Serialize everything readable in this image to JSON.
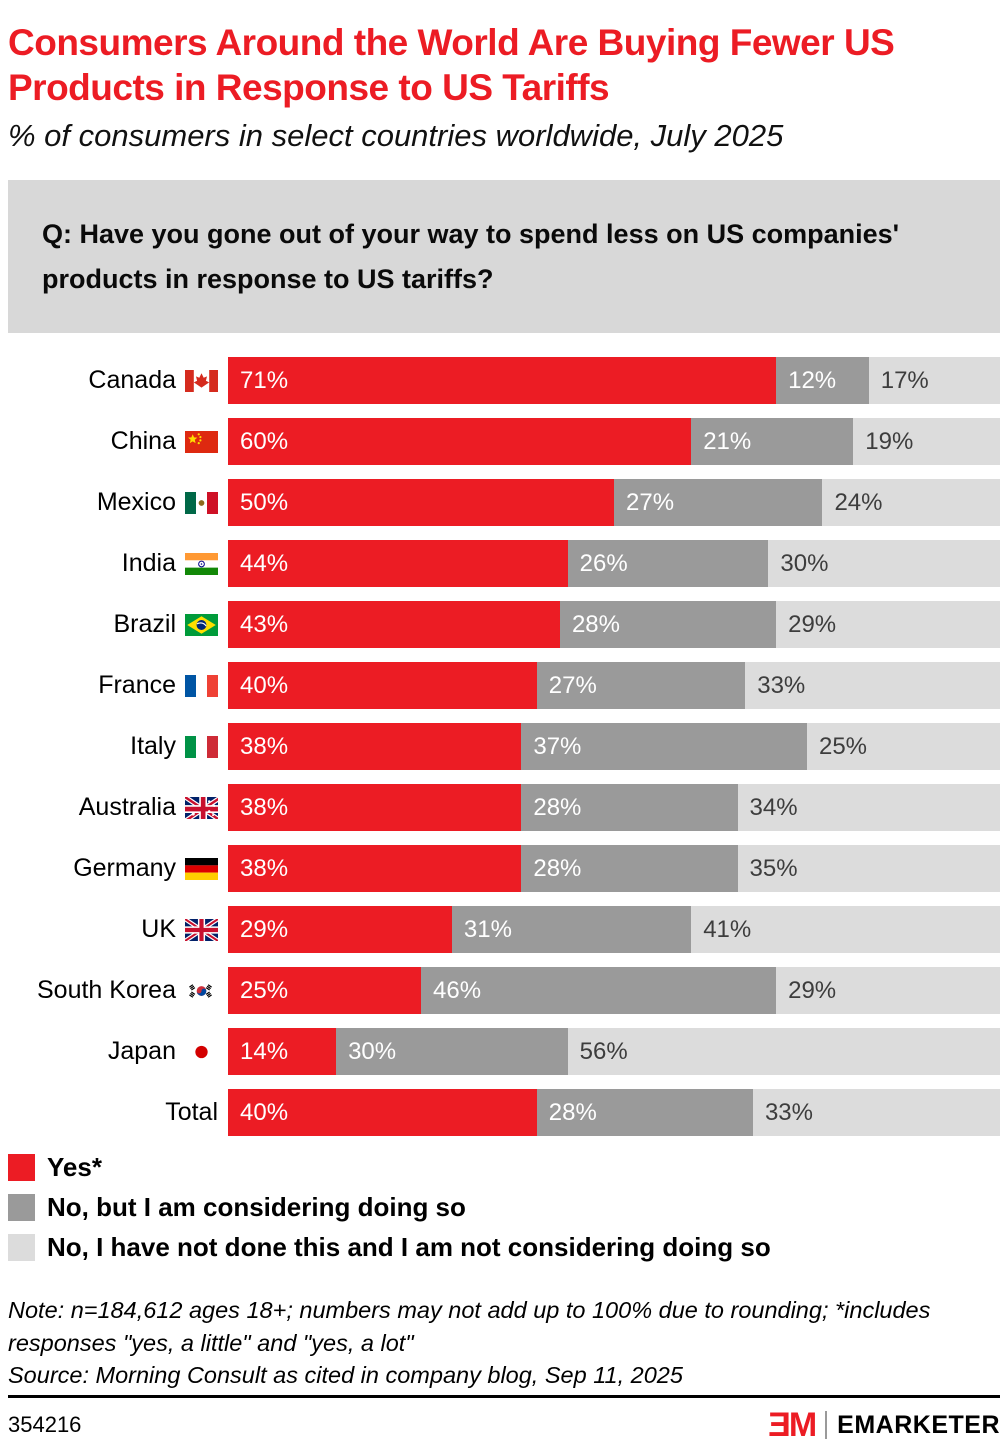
{
  "header": {
    "title": "Consumers Around the World Are Buying Fewer US Products in Response to US Tariffs",
    "subtitle": "% of consumers in select countries worldwide, July 2025"
  },
  "question": "Q: Have you gone out of your way to spend less on US companies' products in response to US tariffs?",
  "chart_data": {
    "type": "bar",
    "stacked": true,
    "orientation": "horizontal",
    "unit": "%",
    "xlim": [
      0,
      100
    ],
    "grid": false,
    "legend_position": "bottom-left",
    "series_names": [
      "Yes*",
      "No, but I am considering doing so",
      "No, I have not done this and I am not considering doing so"
    ],
    "categories": [
      "Canada",
      "China",
      "Mexico",
      "India",
      "Brazil",
      "France",
      "Italy",
      "Australia",
      "Germany",
      "UK",
      "South Korea",
      "Japan",
      "Total"
    ],
    "rows": [
      {
        "label": "Canada",
        "flag": "canada",
        "values": [
          71,
          12,
          17
        ]
      },
      {
        "label": "China",
        "flag": "china",
        "values": [
          60,
          21,
          19
        ]
      },
      {
        "label": "Mexico",
        "flag": "mexico",
        "values": [
          50,
          27,
          24
        ]
      },
      {
        "label": "India",
        "flag": "india",
        "values": [
          44,
          26,
          30
        ]
      },
      {
        "label": "Brazil",
        "flag": "brazil",
        "values": [
          43,
          28,
          29
        ]
      },
      {
        "label": "France",
        "flag": "france",
        "values": [
          40,
          27,
          33
        ]
      },
      {
        "label": "Italy",
        "flag": "italy",
        "values": [
          38,
          37,
          25
        ]
      },
      {
        "label": "Australia",
        "flag": "australia",
        "values": [
          38,
          28,
          34
        ]
      },
      {
        "label": "Germany",
        "flag": "germany",
        "values": [
          38,
          28,
          35
        ]
      },
      {
        "label": "UK",
        "flag": "uk",
        "values": [
          29,
          31,
          41
        ]
      },
      {
        "label": "South Korea",
        "flag": "southkorea",
        "values": [
          25,
          46,
          29
        ]
      },
      {
        "label": "Japan",
        "flag": "japan",
        "values": [
          14,
          30,
          56
        ]
      },
      {
        "label": "Total",
        "flag": null,
        "values": [
          40,
          28,
          33
        ]
      }
    ]
  },
  "legend": [
    {
      "label": "Yes*",
      "color": "#ec1c24"
    },
    {
      "label": "No, but I am considering doing so",
      "color": "#9a9a9a"
    },
    {
      "label": "No, I have not done this and I am not considering doing so",
      "color": "#dcdcdc"
    }
  ],
  "colors": {
    "red": "#ec1c24",
    "dark_gray": "#9a9a9a",
    "light_gray": "#dcdcdc",
    "question_box": "#d8d8d8",
    "light_segment_text": "#3d3d3d"
  },
  "notes": {
    "note": "Note: n=184,612 ages 18+; numbers may not add up to 100% due to rounding; *includes responses \"yes, a little\" and \"yes, a lot\"",
    "source": "Source: Morning Consult as cited in company blog, Sep 11, 2025"
  },
  "footer": {
    "chart_id": "354216",
    "logo_mark": "ƎM",
    "brand": "EMARKETER"
  }
}
